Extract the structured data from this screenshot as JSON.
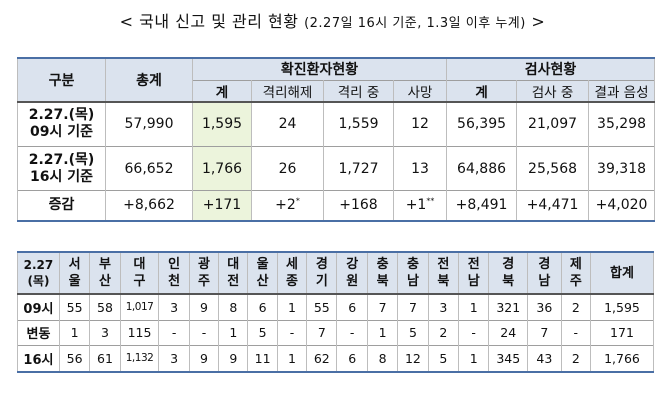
{
  "title": {
    "main": "< 국내 신고 및 관리 현황 ",
    "detail": "(2.27일 16시 기준, 1.3일 이후 누계)",
    "end": " >"
  },
  "table1": {
    "headers": {
      "category": "구분",
      "total": "총계",
      "confirmed_group": "확진환자현황",
      "test_group": "검사현황",
      "confirmed_sub": [
        "계",
        "격리해제",
        "격리 중",
        "사망"
      ],
      "test_sub": [
        "계",
        "검사 중",
        "결과 음성"
      ]
    },
    "rows": [
      {
        "label1": "2.27.(목)",
        "label2": "09시 기준",
        "total": "57,990",
        "conf_total": "1,595",
        "released": "24",
        "isolated": "1,559",
        "deaths": "12",
        "test_total": "56,395",
        "testing": "21,097",
        "negative": "35,298"
      },
      {
        "label1": "2.27.(목)",
        "label2": "16시 기준",
        "total": "66,652",
        "conf_total": "1,766",
        "released": "26",
        "isolated": "1,727",
        "deaths": "13",
        "test_total": "64,886",
        "testing": "25,568",
        "negative": "39,318"
      },
      {
        "label1": "증감",
        "total": "+8,662",
        "conf_total": "+171",
        "released": "+2",
        "released_mark": "*",
        "isolated": "+168",
        "deaths": "+1",
        "deaths_mark": "**",
        "test_total": "+8,491",
        "testing": "+4,471",
        "negative": "+4,020"
      }
    ]
  },
  "table2": {
    "date_label1": "2.27",
    "date_label2": "(목)",
    "regions": [
      [
        "서",
        "울"
      ],
      [
        "부",
        "산"
      ],
      [
        "대",
        "구"
      ],
      [
        "인",
        "천"
      ],
      [
        "광",
        "주"
      ],
      [
        "대",
        "전"
      ],
      [
        "울",
        "산"
      ],
      [
        "세",
        "종"
      ],
      [
        "경",
        "기"
      ],
      [
        "강",
        "원"
      ],
      [
        "충",
        "북"
      ],
      [
        "충",
        "남"
      ],
      [
        "전",
        "북"
      ],
      [
        "전",
        "남"
      ],
      [
        "경",
        "북"
      ],
      [
        "경",
        "남"
      ],
      [
        "제",
        "주"
      ]
    ],
    "total_label": "합계",
    "rows": [
      {
        "label": "09시",
        "values": [
          "55",
          "58",
          "1,017",
          "3",
          "9",
          "8",
          "6",
          "1",
          "55",
          "6",
          "7",
          "7",
          "3",
          "1",
          "321",
          "36",
          "2",
          "1,595"
        ]
      },
      {
        "label": "변동",
        "values": [
          "1",
          "3",
          "115",
          "-",
          "-",
          "1",
          "5",
          "-",
          "7",
          "-",
          "1",
          "5",
          "2",
          "-",
          "24",
          "7",
          "-",
          "171"
        ]
      },
      {
        "label": "16시",
        "values": [
          "56",
          "61",
          "1,132",
          "3",
          "9",
          "9",
          "11",
          "1",
          "62",
          "6",
          "8",
          "12",
          "5",
          "1",
          "345",
          "43",
          "2",
          "1,766"
        ]
      }
    ]
  }
}
